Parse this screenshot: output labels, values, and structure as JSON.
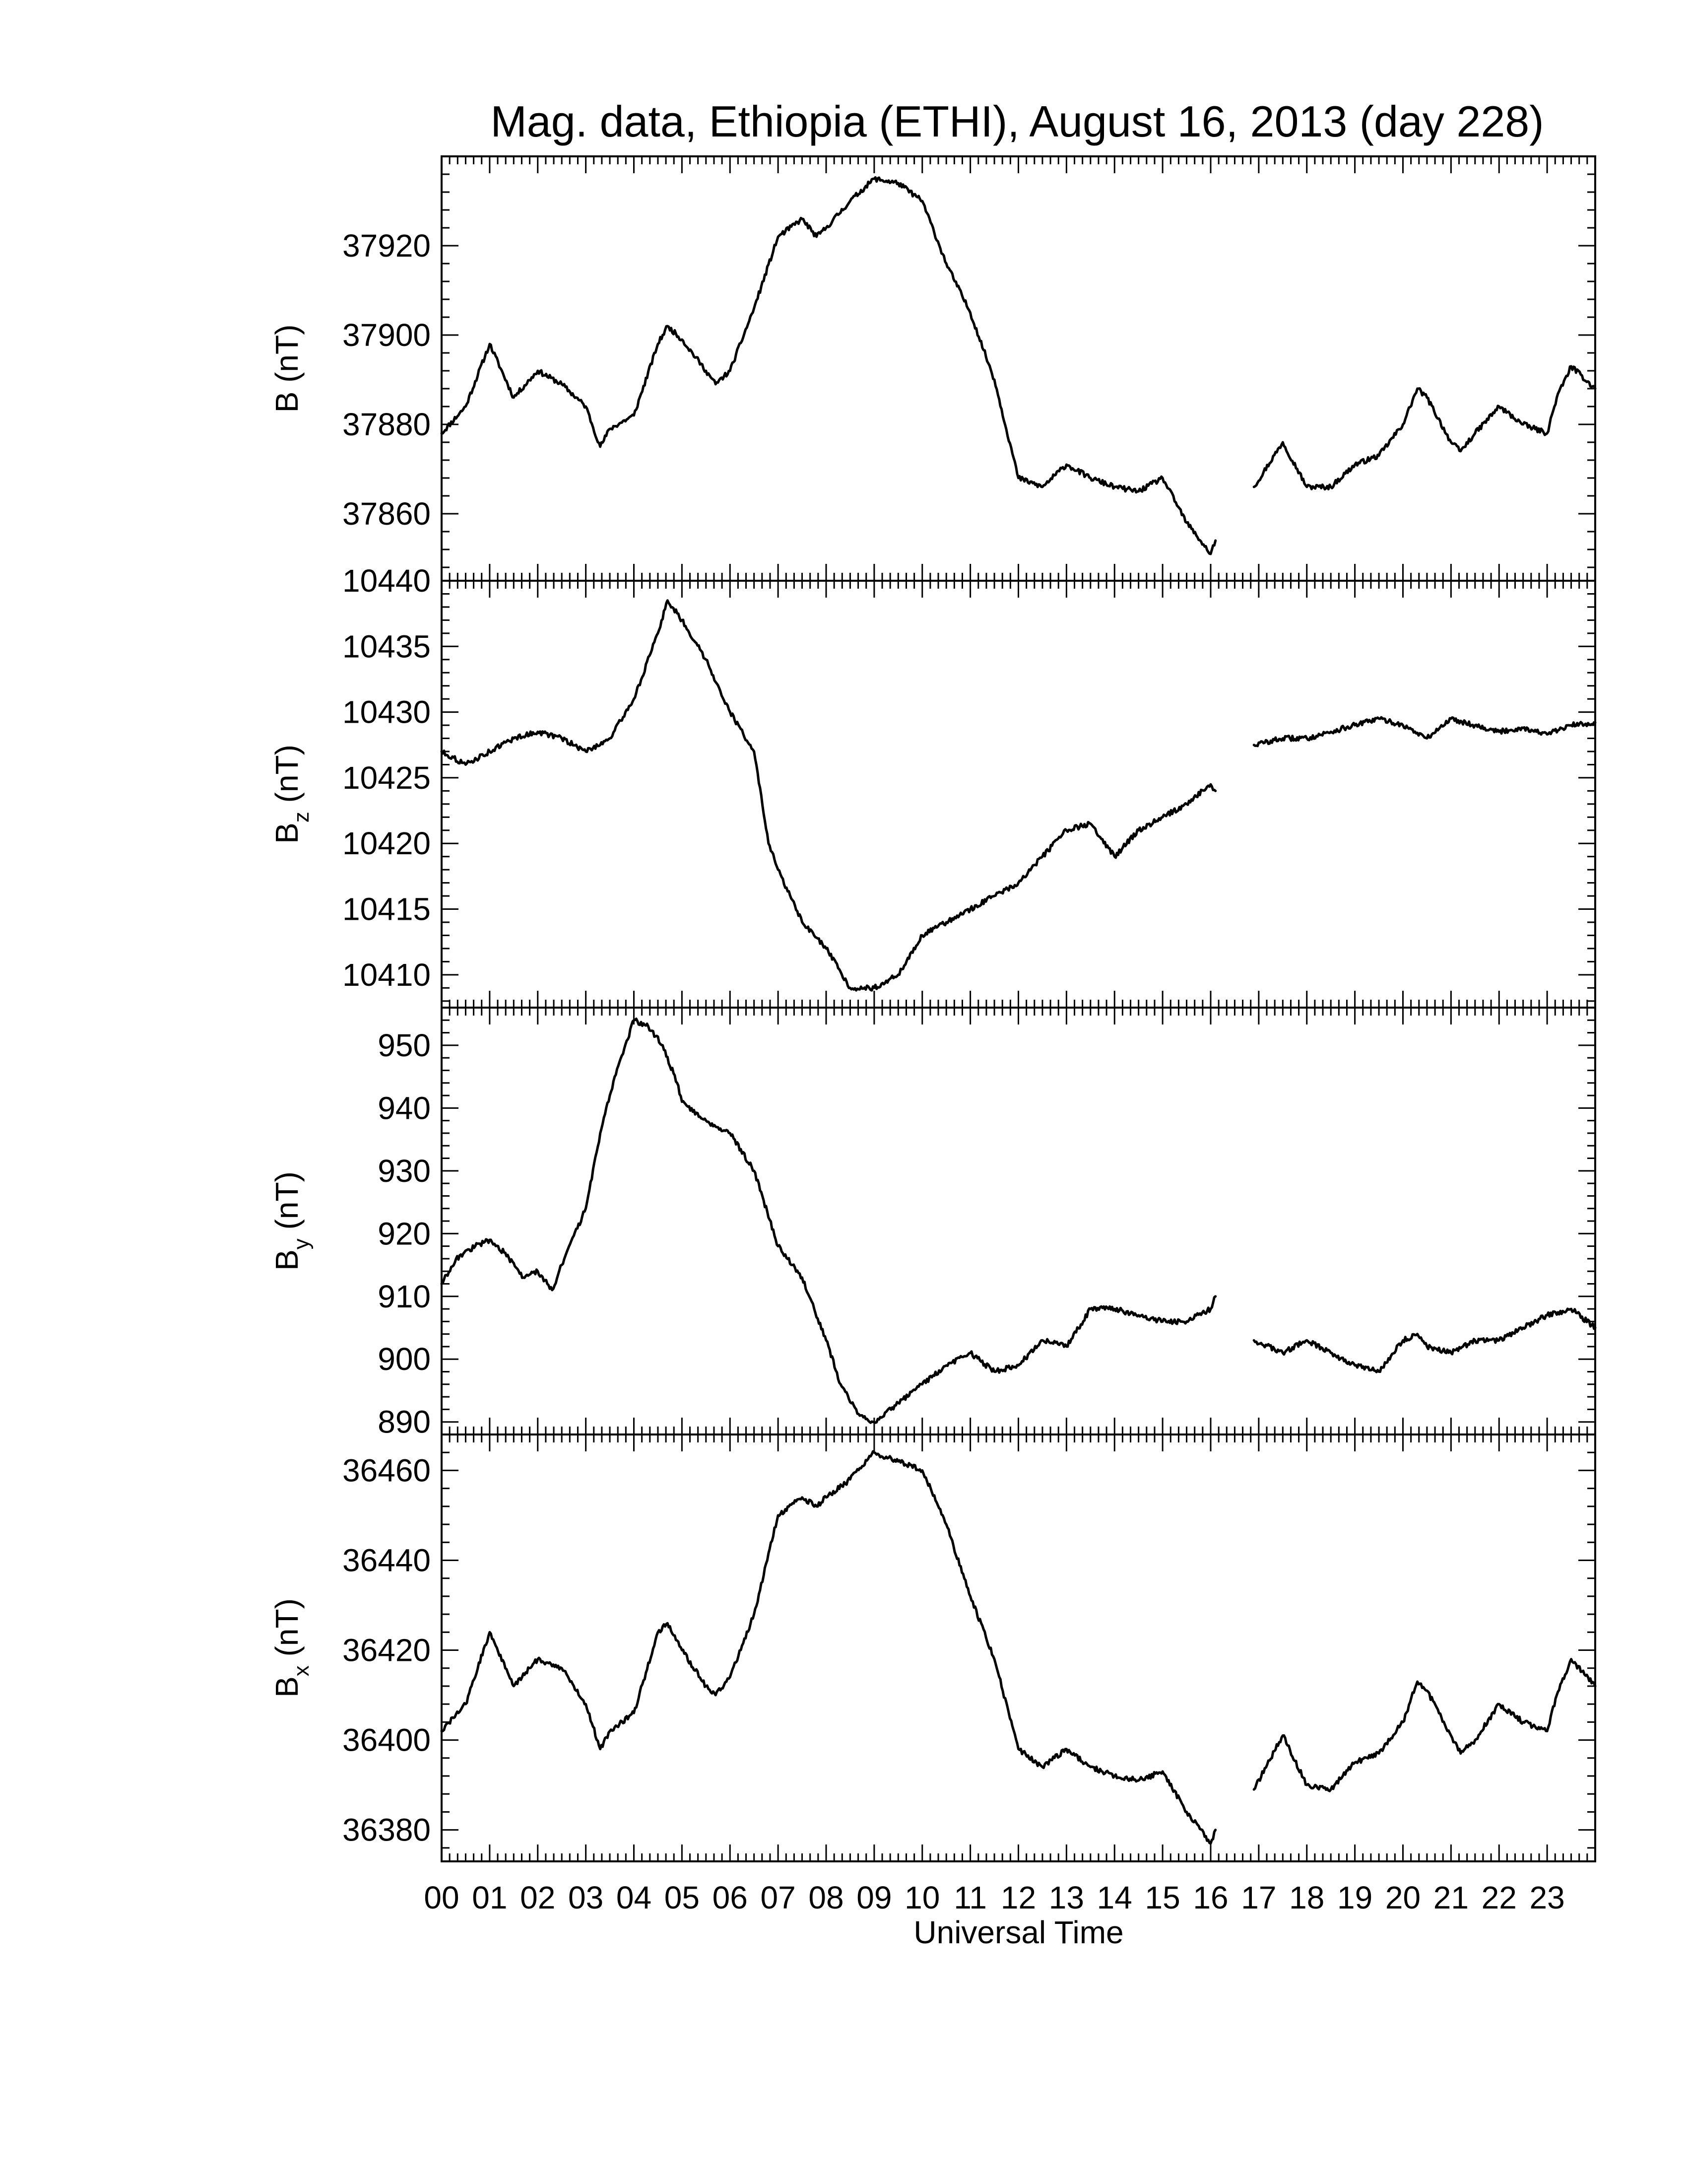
{
  "title": "Mag. data, Ethiopia (ETHI), August 16, 2013 (day 228)",
  "xlabel": "Universal Time",
  "colors": {
    "trace": "#000000",
    "frame": "#000000",
    "background": "#ffffff"
  },
  "chart_data": [
    {
      "type": "line",
      "panel": "B",
      "ylabel_main": "B",
      "ylabel_sub": "",
      "ylabel_unit": "(nT)",
      "ylim": [
        37845,
        37940
      ],
      "yticks": [
        37860,
        37880,
        37900,
        37920
      ],
      "x_hours": [
        0,
        0.5,
        1,
        1.5,
        2,
        2.5,
        3,
        3.3,
        3.5,
        4,
        4.5,
        4.7,
        5,
        5.5,
        5.7,
        6,
        6.5,
        7,
        7.5,
        7.8,
        8,
        8.5,
        9,
        9.5,
        10,
        10.5,
        11,
        11.5,
        12,
        12.5,
        13,
        13.5,
        14,
        14.5,
        15,
        15.5,
        16,
        16.1
      ],
      "y_nT": [
        37878,
        37884,
        37898,
        37886,
        37892,
        37889,
        37884,
        37875,
        37879,
        37882,
        37898,
        37902,
        37899,
        37892,
        37889,
        37892,
        37906,
        37922,
        37926,
        37922,
        37924,
        37930,
        37935,
        37934,
        37930,
        37916,
        37905,
        37890,
        37868,
        37866,
        37871,
        37868,
        37866,
        37865,
        37868,
        37858,
        37851,
        37854
      ],
      "x_hours_b": [
        16.9,
        17.5,
        18,
        18.5,
        19,
        19.5,
        20,
        20.3,
        20.5,
        21,
        21.2,
        21.5,
        22,
        22.5,
        23,
        23.2,
        23.5,
        24
      ],
      "y_nT_b": [
        37866,
        37876,
        37866,
        37866,
        37871,
        37873,
        37880,
        37888,
        37886,
        37876,
        37874,
        37878,
        37884,
        37880,
        37878,
        37886,
        37893,
        37888
      ]
    },
    {
      "type": "line",
      "panel": "Bz",
      "ylabel_main": "B",
      "ylabel_sub": "z",
      "ylabel_unit": "(nT)",
      "ylim": [
        10407.5,
        10440
      ],
      "yticks": [
        10410,
        10415,
        10420,
        10425,
        10430,
        10435,
        10440
      ],
      "x_hours": [
        0,
        0.5,
        1,
        1.5,
        2,
        2.5,
        3,
        3.5,
        4,
        4.5,
        4.7,
        5,
        5.5,
        6,
        6.5,
        6.8,
        7,
        7.5,
        8,
        8.5,
        9,
        9.5,
        10,
        10.5,
        11,
        11.5,
        12,
        12.5,
        13,
        13.5,
        14,
        14.5,
        15,
        15.5,
        16,
        16.1
      ],
      "y_nT": [
        10427,
        10426,
        10427,
        10428,
        10428.5,
        10428,
        10427,
        10428,
        10431,
        10436,
        10438.5,
        10437,
        10434,
        10430,
        10427,
        10420,
        10418,
        10414,
        10412,
        10409,
        10409,
        10410,
        10413,
        10414,
        10415,
        10416,
        10417,
        10419,
        10421,
        10421.5,
        10419,
        10421,
        10422,
        10423,
        10424.5,
        10424
      ],
      "x_hours_b": [
        16.9,
        17.5,
        18,
        18.5,
        19,
        19.5,
        20,
        20.5,
        21,
        21.5,
        22,
        22.5,
        23,
        23.5,
        24
      ],
      "y_nT_b": [
        10427.5,
        10428,
        10428,
        10428.5,
        10429,
        10429.5,
        10429,
        10428,
        10429.5,
        10429,
        10428.5,
        10428.8,
        10428.3,
        10429,
        10429.2
      ]
    },
    {
      "type": "line",
      "panel": "By",
      "ylabel_main": "B",
      "ylabel_sub": "y",
      "ylabel_unit": "(nT)",
      "ylim": [
        888,
        956
      ],
      "yticks": [
        890,
        900,
        910,
        920,
        930,
        940,
        950
      ],
      "x_hours": [
        0,
        0.3,
        0.7,
        1,
        1.3,
        1.7,
        2,
        2.3,
        2.5,
        3,
        3.3,
        3.6,
        4,
        4.3,
        4.6,
        4.9,
        5,
        5.5,
        6,
        6.5,
        7,
        7.5,
        8,
        8.3,
        8.7,
        9,
        9.5,
        10,
        10.5,
        11,
        11.5,
        12,
        12.5,
        13,
        13.5,
        14,
        14.5,
        15,
        15.5,
        16,
        16.1
      ],
      "y_nT": [
        912,
        916,
        918,
        919,
        917,
        913,
        914,
        911,
        915,
        924,
        936,
        945,
        954,
        953,
        950,
        944,
        941,
        938,
        936,
        930,
        918,
        913,
        903,
        896,
        891,
        890,
        893,
        896,
        899,
        901,
        898,
        899,
        903,
        902,
        908,
        908,
        907,
        906,
        906,
        908,
        910
      ],
      "x_hours_b": [
        16.9,
        17.5,
        18,
        18.5,
        19,
        19.5,
        20,
        20.3,
        20.5,
        21,
        21.5,
        22,
        22.5,
        23,
        23.5,
        24
      ],
      "y_nT_b": [
        903,
        901,
        903,
        901,
        899,
        898,
        903,
        904,
        902,
        901,
        903,
        903,
        905,
        907,
        908,
        905
      ]
    },
    {
      "type": "line",
      "panel": "Bx",
      "ylabel_main": "B",
      "ylabel_sub": "x",
      "ylabel_unit": "(nT)",
      "ylim": [
        36373,
        36468
      ],
      "yticks": [
        36380,
        36400,
        36420,
        36440,
        36460
      ],
      "x_hours": [
        0,
        0.5,
        1,
        1.5,
        2,
        2.5,
        3,
        3.3,
        3.5,
        4,
        4.5,
        4.7,
        5,
        5.5,
        5.7,
        6,
        6.5,
        7,
        7.5,
        7.8,
        8,
        8.5,
        9,
        9.5,
        10,
        10.5,
        11,
        11.5,
        12,
        12.5,
        13,
        13.5,
        14,
        14.5,
        15,
        15.5,
        16,
        16.1
      ],
      "y_nT": [
        36402,
        36408,
        36424,
        36412,
        36418,
        36416,
        36408,
        36398,
        36402,
        36406,
        36424,
        36426,
        36420,
        36412,
        36410,
        36414,
        36428,
        36450,
        36454,
        36452,
        36454,
        36458,
        36464,
        36462,
        36460,
        36448,
        36432,
        36418,
        36398,
        36394,
        36398,
        36394,
        36392,
        36391,
        36393,
        36384,
        36377,
        36380
      ],
      "x_hours_b": [
        16.9,
        17.5,
        18,
        18.5,
        19,
        19.5,
        20,
        20.3,
        20.5,
        21,
        21.2,
        21.5,
        22,
        22.5,
        23,
        23.2,
        23.5,
        24
      ],
      "y_nT_b": [
        36389,
        36401,
        36390,
        36389,
        36395,
        36397,
        36404,
        36413,
        36411,
        36401,
        36397,
        36400,
        36408,
        36404,
        36402,
        36410,
        36418,
        36412
      ]
    }
  ],
  "xticks": [
    "00",
    "01",
    "02",
    "03",
    "04",
    "05",
    "06",
    "07",
    "08",
    "09",
    "10",
    "11",
    "12",
    "13",
    "14",
    "15",
    "16",
    "17",
    "18",
    "19",
    "20",
    "21",
    "22",
    "23"
  ]
}
